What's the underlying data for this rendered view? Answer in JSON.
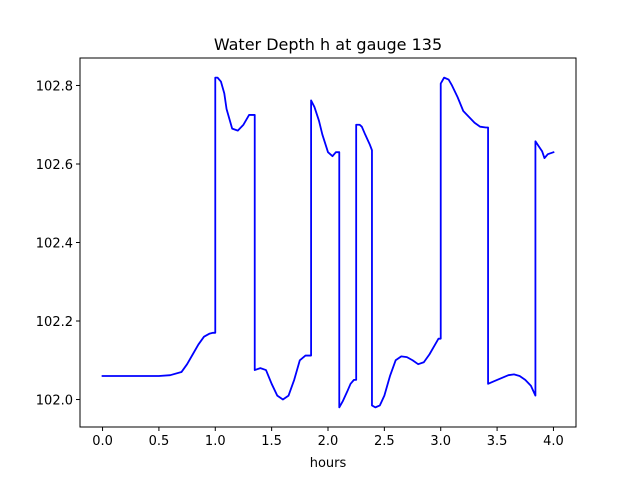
{
  "chart_data": {
    "type": "line",
    "title": "Water Depth h at gauge 135",
    "xlabel": "hours",
    "ylabel": "",
    "xlim": [
      -0.2,
      4.2
    ],
    "ylim": [
      101.93,
      102.87
    ],
    "xticks": [
      0.0,
      0.5,
      1.0,
      1.5,
      2.0,
      2.5,
      3.0,
      3.5,
      4.0
    ],
    "xtick_labels": [
      "0.0",
      "0.5",
      "1.0",
      "1.5",
      "2.0",
      "2.5",
      "3.0",
      "3.5",
      "4.0"
    ],
    "yticks": [
      102.0,
      102.2,
      102.4,
      102.6,
      102.8
    ],
    "ytick_labels": [
      "102.0",
      "102.2",
      "102.4",
      "102.6",
      "102.8"
    ],
    "grid": false,
    "legend": "none",
    "series": [
      {
        "color": "#0000ff",
        "x": [
          0.0,
          0.3,
          0.5,
          0.6,
          0.7,
          0.75,
          0.8,
          0.85,
          0.9,
          0.95,
          0.98,
          1.0,
          1.0,
          1.02,
          1.05,
          1.08,
          1.1,
          1.15,
          1.2,
          1.25,
          1.3,
          1.35,
          1.35,
          1.4,
          1.45,
          1.5,
          1.55,
          1.6,
          1.65,
          1.7,
          1.75,
          1.8,
          1.85,
          1.85,
          1.88,
          1.92,
          1.95,
          2.0,
          2.04,
          2.07,
          2.1,
          2.1,
          2.13,
          2.17,
          2.2,
          2.23,
          2.25,
          2.25,
          2.28,
          2.3,
          2.33,
          2.37,
          2.39,
          2.39,
          2.42,
          2.46,
          2.5,
          2.55,
          2.6,
          2.65,
          2.7,
          2.75,
          2.8,
          2.85,
          2.9,
          2.95,
          2.98,
          3.0,
          3.0,
          3.03,
          3.07,
          3.1,
          3.15,
          3.2,
          3.25,
          3.3,
          3.35,
          3.4,
          3.42,
          3.42,
          3.5,
          3.6,
          3.65,
          3.7,
          3.75,
          3.8,
          3.84,
          3.84,
          3.87,
          3.9,
          3.92,
          3.95,
          4.0
        ],
        "y": [
          102.06,
          102.06,
          102.06,
          102.062,
          102.07,
          102.09,
          102.115,
          102.14,
          102.16,
          102.168,
          102.17,
          102.17,
          102.82,
          102.82,
          102.81,
          102.78,
          102.74,
          102.69,
          102.685,
          102.7,
          102.725,
          102.725,
          102.075,
          102.08,
          102.075,
          102.04,
          102.01,
          102.0,
          102.01,
          102.05,
          102.1,
          102.112,
          102.112,
          102.762,
          102.745,
          102.71,
          102.675,
          102.63,
          102.62,
          102.63,
          102.63,
          101.98,
          101.995,
          102.02,
          102.04,
          102.05,
          102.05,
          102.7,
          102.7,
          102.695,
          102.675,
          102.65,
          102.635,
          101.985,
          101.98,
          101.985,
          102.01,
          102.06,
          102.1,
          102.11,
          102.108,
          102.1,
          102.09,
          102.095,
          102.115,
          102.14,
          102.155,
          102.155,
          102.805,
          102.82,
          102.815,
          102.8,
          102.77,
          102.735,
          102.72,
          102.705,
          102.695,
          102.693,
          102.693,
          102.04,
          102.05,
          102.062,
          102.064,
          102.06,
          102.05,
          102.035,
          102.01,
          102.658,
          102.645,
          102.632,
          102.615,
          102.625,
          102.63
        ]
      }
    ]
  }
}
